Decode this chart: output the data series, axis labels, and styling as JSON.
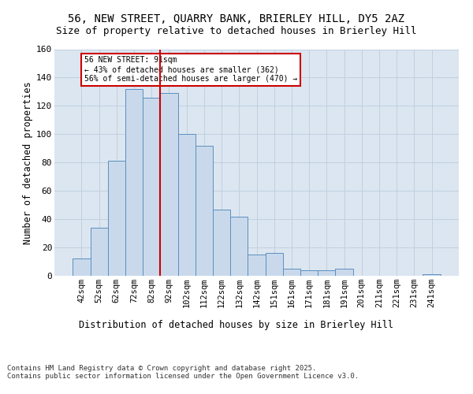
{
  "title_line1": "56, NEW STREET, QUARRY BANK, BRIERLEY HILL, DY5 2AZ",
  "title_line2": "Size of property relative to detached houses in Brierley Hill",
  "xlabel": "Distribution of detached houses by size in Brierley Hill",
  "ylabel": "Number of detached properties",
  "bar_labels": [
    "42sqm",
    "52sqm",
    "62sqm",
    "72sqm",
    "82sqm",
    "92sqm",
    "102sqm",
    "112sqm",
    "122sqm",
    "132sqm",
    "142sqm",
    "151sqm",
    "161sqm",
    "171sqm",
    "181sqm",
    "191sqm",
    "201sqm",
    "211sqm",
    "221sqm",
    "231sqm",
    "241sqm"
  ],
  "bar_values": [
    12,
    34,
    81,
    132,
    126,
    129,
    100,
    92,
    47,
    42,
    15,
    16,
    5,
    4,
    4,
    5,
    0,
    0,
    0,
    0,
    1
  ],
  "bar_color": "#c9d9eb",
  "bar_edge_color": "#5b8fc1",
  "vline_x_idx": 5,
  "vline_color": "#cc0000",
  "annotation_text": "56 NEW STREET: 91sqm\n← 43% of detached houses are smaller (362)\n56% of semi-detached houses are larger (470) →",
  "annotation_box_color": "#ffffff",
  "annotation_box_edge": "#cc0000",
  "grid_color": "#c0cfe0",
  "background_color": "#dce6f0",
  "ylim": [
    0,
    160
  ],
  "yticks": [
    0,
    20,
    40,
    60,
    80,
    100,
    120,
    140,
    160
  ],
  "footer_text": "Contains HM Land Registry data © Crown copyright and database right 2025.\nContains public sector information licensed under the Open Government Licence v3.0."
}
